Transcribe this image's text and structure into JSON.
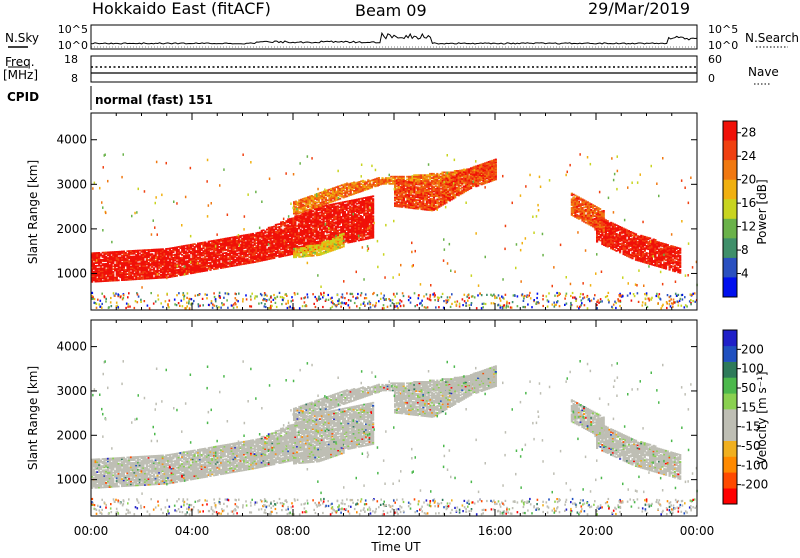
{
  "header": {
    "station": "Hokkaido East (fitACF)",
    "beam": "Beam 09",
    "date": "29/Mar/2019"
  },
  "left_labels": {
    "nsky": "N.Sky",
    "freq_line1": "Freq.",
    "freq_line2": "[MHz]",
    "cpid": "CPID"
  },
  "right_labels": {
    "nsearch": "N.Search",
    "nave": "Nave"
  },
  "noise_panel": {
    "left_ticks": [
      "10^5",
      "10^0"
    ],
    "right_ticks": [
      "10^5",
      "10^0"
    ]
  },
  "freq_panel": {
    "left_ticks": [
      "18",
      "8"
    ],
    "right_ticks": [
      "60",
      "0"
    ]
  },
  "cpid_panel": {
    "text": "normal (fast) 151"
  },
  "colors": {
    "power_scale": [
      "#0010ee",
      "#2a50c0",
      "#3f8f6a",
      "#6ab24a",
      "#c8d420",
      "#f0b010",
      "#f07810",
      "#f04010",
      "#f01008"
    ],
    "velocity_scale": [
      "#ff0000",
      "#ff4a00",
      "#ff8a00",
      "#f0b020",
      "#bebeb4",
      "#bebeb4",
      "#8ad050",
      "#4cb84c",
      "#2e7a5a",
      "#2050c0",
      "#2020c8"
    ],
    "gray": "#bebeb4"
  },
  "chart_data": [
    {
      "type": "heatmap",
      "name": "power",
      "ylabel": "Slant Range [km]",
      "xlabel": "",
      "x_ticks": [
        "00:00",
        "04:00",
        "08:00",
        "12:00",
        "16:00",
        "20:00",
        "00:00"
      ],
      "xlim_hours": [
        0,
        24
      ],
      "y_ticks": [
        1000,
        2000,
        3000,
        4000
      ],
      "ylim_km": [
        180,
        4600
      ],
      "colorbar": {
        "label": "Power [dB]",
        "tick_values": [
          4,
          8,
          12,
          16,
          20,
          24,
          28
        ],
        "range": [
          0,
          30
        ]
      },
      "echo_bands": [
        {
          "t": [
            0,
            3,
            6.5,
            9,
            11.2
          ],
          "lo": [
            800,
            900,
            1250,
            1550,
            1800
          ],
          "hi": [
            1450,
            1550,
            1900,
            2500,
            2750
          ],
          "power": 29
        },
        {
          "t": [
            8,
            10,
            11.5,
            13,
            14.5,
            16
          ],
          "lo": [
            2300,
            2700,
            3000,
            3000,
            3000,
            3150
          ],
          "hi": [
            2600,
            3000,
            3150,
            3200,
            3300,
            3500
          ],
          "power": 22
        },
        {
          "t": [
            20,
            21.5,
            23.3
          ],
          "lo": [
            1700,
            1300,
            1000
          ],
          "hi": [
            2300,
            1900,
            1550
          ],
          "power": 28
        },
        {
          "t": [
            19,
            20.3
          ],
          "lo": [
            2300,
            1900
          ],
          "hi": [
            2800,
            2400
          ],
          "power": 24
        },
        {
          "t": [
            8,
            9,
            10
          ],
          "lo": [
            1350,
            1400,
            1600
          ],
          "hi": [
            1550,
            1650,
            1900
          ],
          "power": 17
        },
        {
          "t": [
            12,
            13.5,
            15,
            16
          ],
          "lo": [
            2500,
            2400,
            2900,
            3100
          ],
          "hi": [
            3100,
            3000,
            3350,
            3550
          ],
          "power": 25
        }
      ]
    },
    {
      "type": "heatmap",
      "name": "velocity",
      "ylabel": "Slant Range [km]",
      "xlabel": "Time UT",
      "x_ticks": [
        "00:00",
        "04:00",
        "08:00",
        "12:00",
        "16:00",
        "20:00",
        "00:00"
      ],
      "xlim_hours": [
        0,
        24
      ],
      "y_ticks": [
        1000,
        2000,
        3000,
        4000
      ],
      "ylim_km": [
        180,
        4600
      ],
      "colorbar": {
        "label": "Velocity [m s⁻¹]",
        "tick_labels": [
          "-200",
          "-100",
          "-50",
          "-15",
          "15",
          "50",
          "100",
          "200"
        ]
      }
    }
  ]
}
